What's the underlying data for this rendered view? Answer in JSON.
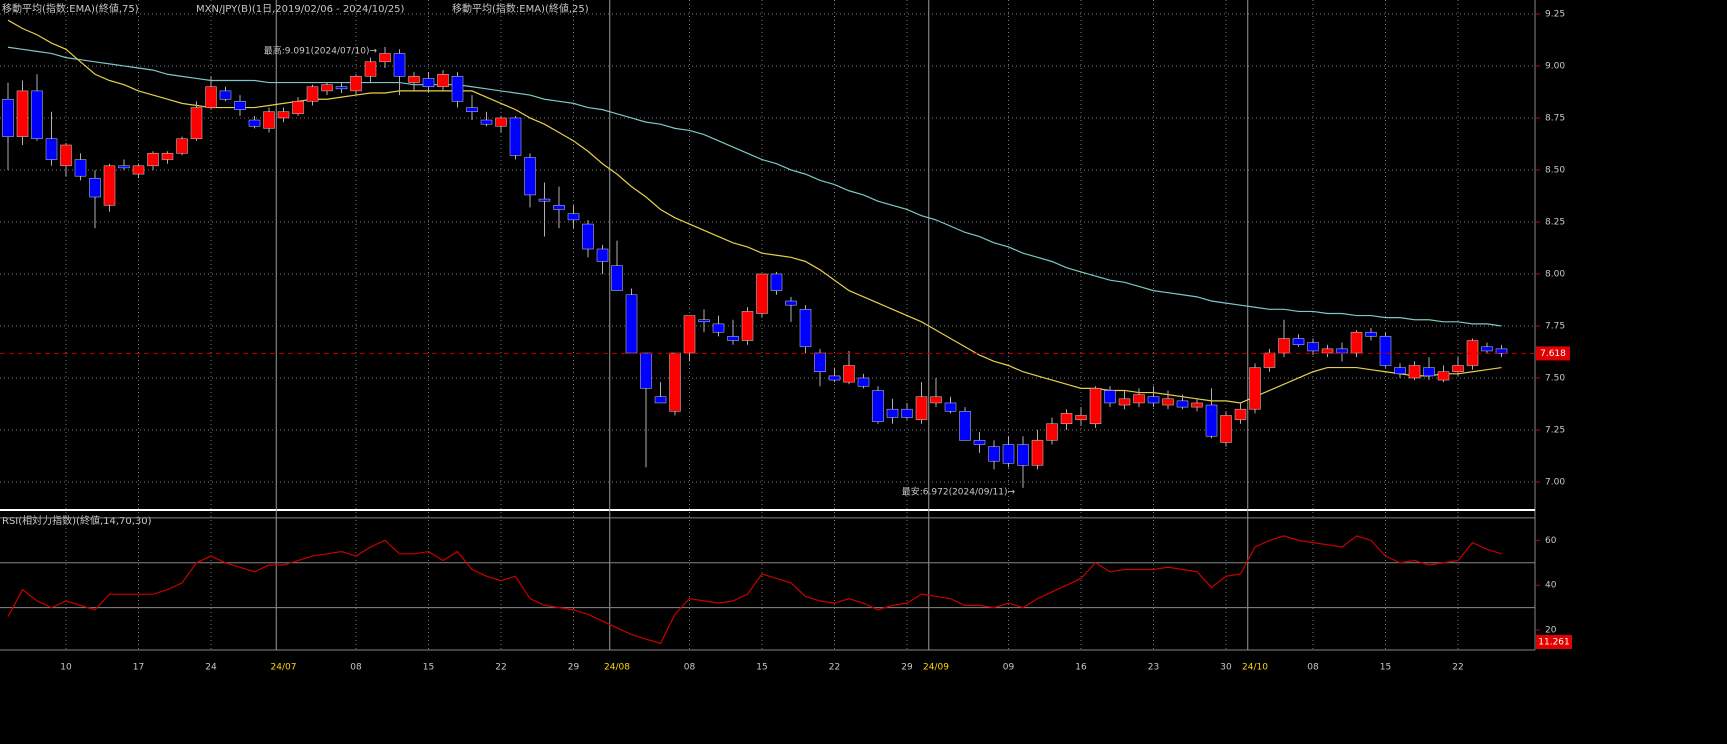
{
  "chart_data": [
    {
      "type": "candlestick",
      "title": "MXN/JPY(B)(1日,2019/02/06 - 2024/10/25)",
      "up_color": "#ff0000",
      "down_color": "#0000ff",
      "wick_color": "#b0b0b0",
      "categories": [
        null,
        null,
        null,
        null,
        "10",
        null,
        null,
        null,
        null,
        "17",
        null,
        null,
        null,
        null,
        "24",
        null,
        null,
        null,
        null,
        "24/07",
        null,
        null,
        null,
        null,
        "08",
        null,
        null,
        null,
        null,
        "15",
        null,
        null,
        null,
        null,
        "22",
        null,
        null,
        null,
        null,
        "29",
        null,
        null,
        "24/08",
        null,
        null,
        null,
        null,
        "08",
        null,
        null,
        null,
        null,
        "15",
        null,
        null,
        null,
        null,
        "22",
        null,
        null,
        null,
        null,
        "29",
        null,
        "24/09",
        null,
        null,
        null,
        null,
        "09",
        null,
        null,
        null,
        null,
        "16",
        null,
        null,
        null,
        null,
        "23",
        null,
        null,
        null,
        null,
        "30",
        null,
        "24/10",
        null,
        null,
        null,
        "08",
        null,
        null,
        null,
        null,
        "15",
        null,
        null,
        null,
        null,
        "22",
        null,
        null,
        null
      ],
      "open": [
        8.84,
        8.66,
        8.88,
        8.65,
        8.52,
        8.55,
        8.46,
        8.33,
        8.52,
        8.48,
        8.52,
        8.55,
        8.58,
        8.65,
        8.8,
        8.88,
        8.83,
        8.74,
        8.7,
        8.75,
        8.77,
        8.83,
        8.88,
        8.9,
        8.88,
        8.95,
        9.02,
        9.06,
        8.92,
        8.94,
        8.9,
        8.95,
        8.8,
        8.74,
        8.71,
        8.75,
        8.56,
        8.36,
        8.33,
        8.29,
        8.24,
        8.12,
        8.04,
        7.9,
        7.62,
        7.41,
        7.34,
        7.62,
        7.78,
        7.76,
        7.7,
        7.68,
        7.81,
        8.0,
        7.87,
        7.83,
        7.62,
        7.51,
        7.48,
        7.5,
        7.44,
        7.35,
        7.35,
        7.3,
        7.38,
        7.38,
        7.34,
        7.2,
        7.17,
        7.18,
        7.18,
        7.08,
        7.2,
        7.28,
        7.3,
        7.28,
        7.44,
        7.37,
        7.38,
        7.41,
        7.37,
        7.39,
        7.36,
        7.37,
        7.19,
        7.3,
        7.35,
        7.55,
        7.62,
        7.69,
        7.67,
        7.62,
        7.64,
        7.62,
        7.72,
        7.7,
        7.55,
        7.5,
        7.55,
        7.49,
        7.53,
        7.56,
        7.65,
        7.64
      ],
      "high": [
        8.92,
        8.93,
        8.96,
        8.78,
        8.63,
        8.58,
        8.5,
        8.53,
        8.55,
        8.53,
        8.59,
        8.59,
        8.66,
        8.83,
        8.95,
        8.9,
        8.86,
        8.76,
        8.8,
        8.8,
        8.85,
        8.91,
        8.92,
        8.92,
        8.96,
        9.04,
        9.091,
        9.08,
        8.97,
        8.97,
        8.98,
        8.97,
        8.86,
        8.78,
        8.76,
        8.76,
        8.58,
        8.44,
        8.42,
        8.33,
        8.26,
        8.14,
        8.16,
        7.93,
        7.62,
        7.48,
        7.62,
        7.8,
        7.83,
        7.8,
        7.78,
        7.84,
        8.0,
        8.01,
        7.89,
        7.85,
        7.64,
        7.55,
        7.63,
        7.52,
        7.46,
        7.4,
        7.38,
        7.48,
        7.5,
        7.41,
        7.36,
        7.24,
        7.2,
        7.22,
        7.22,
        7.25,
        7.31,
        7.35,
        7.36,
        7.46,
        7.46,
        7.44,
        7.45,
        7.46,
        7.44,
        7.42,
        7.4,
        7.45,
        7.34,
        7.38,
        7.57,
        7.64,
        7.78,
        7.71,
        7.69,
        7.66,
        7.67,
        7.73,
        7.74,
        7.72,
        7.57,
        7.58,
        7.6,
        7.56,
        7.6,
        7.69,
        7.67,
        7.66
      ],
      "low": [
        8.5,
        8.62,
        8.64,
        8.52,
        8.47,
        8.45,
        8.22,
        8.3,
        8.5,
        8.46,
        8.5,
        8.53,
        8.57,
        8.64,
        8.79,
        8.83,
        8.76,
        8.7,
        8.68,
        8.73,
        8.76,
        8.81,
        8.86,
        8.87,
        8.86,
        8.92,
        8.99,
        8.86,
        8.88,
        8.87,
        8.88,
        8.8,
        8.74,
        8.71,
        8.68,
        8.55,
        8.32,
        8.18,
        8.22,
        8.22,
        8.08,
        8.0,
        7.92,
        7.62,
        7.07,
        7.38,
        7.32,
        7.58,
        7.72,
        7.7,
        7.66,
        7.66,
        7.79,
        7.9,
        7.77,
        7.62,
        7.46,
        7.48,
        7.47,
        7.45,
        7.28,
        7.28,
        7.3,
        7.28,
        7.36,
        7.33,
        7.2,
        7.14,
        7.06,
        7.07,
        6.972,
        7.06,
        7.18,
        7.25,
        7.27,
        7.26,
        7.36,
        7.35,
        7.36,
        7.36,
        7.35,
        7.35,
        7.34,
        7.21,
        7.17,
        7.28,
        7.33,
        7.53,
        7.6,
        7.65,
        7.61,
        7.6,
        7.58,
        7.6,
        7.68,
        7.55,
        7.5,
        7.49,
        7.49,
        7.48,
        7.51,
        7.54,
        7.62,
        7.6
      ],
      "close": [
        8.66,
        8.88,
        8.65,
        8.55,
        8.62,
        8.47,
        8.37,
        8.52,
        8.51,
        8.52,
        8.58,
        8.58,
        8.65,
        8.8,
        8.9,
        8.84,
        8.79,
        8.71,
        8.78,
        8.78,
        8.83,
        8.9,
        8.91,
        8.89,
        8.95,
        9.02,
        9.06,
        8.95,
        8.95,
        8.9,
        8.96,
        8.83,
        8.78,
        8.72,
        8.75,
        8.57,
        8.38,
        8.35,
        8.31,
        8.26,
        8.12,
        8.06,
        7.92,
        7.62,
        7.45,
        7.38,
        7.62,
        7.8,
        7.77,
        7.72,
        7.68,
        7.82,
        8.0,
        7.92,
        7.85,
        7.65,
        7.53,
        7.49,
        7.56,
        7.46,
        7.29,
        7.31,
        7.31,
        7.41,
        7.41,
        7.34,
        7.2,
        7.18,
        7.1,
        7.09,
        7.08,
        7.2,
        7.28,
        7.33,
        7.32,
        7.45,
        7.38,
        7.4,
        7.42,
        7.38,
        7.4,
        7.36,
        7.38,
        7.22,
        7.32,
        7.35,
        7.55,
        7.62,
        7.69,
        7.66,
        7.63,
        7.64,
        7.62,
        7.72,
        7.7,
        7.56,
        7.52,
        7.56,
        7.51,
        7.53,
        7.56,
        7.68,
        7.63,
        7.618
      ],
      "series": [
        {
          "name": "移動平均(指数:EMA)(終値,75)",
          "color": "#7fc6c6",
          "values": [
            9.09,
            9.08,
            9.07,
            9.06,
            9.04,
            9.03,
            9.02,
            9.01,
            9.0,
            8.99,
            8.98,
            8.96,
            8.95,
            8.94,
            8.93,
            8.93,
            8.93,
            8.93,
            8.92,
            8.92,
            8.92,
            8.92,
            8.92,
            8.92,
            8.92,
            8.92,
            8.92,
            8.92,
            8.91,
            8.91,
            8.91,
            8.91,
            8.9,
            8.89,
            8.88,
            8.87,
            8.86,
            8.84,
            8.83,
            8.82,
            8.8,
            8.79,
            8.77,
            8.75,
            8.73,
            8.72,
            8.7,
            8.69,
            8.67,
            8.64,
            8.61,
            8.58,
            8.55,
            8.53,
            8.5,
            8.48,
            8.45,
            8.43,
            8.4,
            8.38,
            8.35,
            8.33,
            8.31,
            8.28,
            8.26,
            8.23,
            8.2,
            8.18,
            8.15,
            8.13,
            8.1,
            8.08,
            8.06,
            8.03,
            8.01,
            7.99,
            7.97,
            7.96,
            7.94,
            7.92,
            7.91,
            7.9,
            7.89,
            7.87,
            7.86,
            7.85,
            7.84,
            7.83,
            7.83,
            7.82,
            7.82,
            7.81,
            7.81,
            7.8,
            7.8,
            7.79,
            7.79,
            7.78,
            7.78,
            7.77,
            7.77,
            7.76,
            7.76,
            7.75
          ]
        },
        {
          "name": "移動平均(指数:EMA)(終値,25)",
          "color": "#e6cf4a",
          "values": [
            9.22,
            9.18,
            9.15,
            9.11,
            9.08,
            9.02,
            8.96,
            8.93,
            8.91,
            8.88,
            8.86,
            8.84,
            8.82,
            8.81,
            8.8,
            8.8,
            8.8,
            8.8,
            8.81,
            8.82,
            8.83,
            8.84,
            8.84,
            8.85,
            8.86,
            8.87,
            8.87,
            8.88,
            8.88,
            8.88,
            8.88,
            8.88,
            8.88,
            8.85,
            8.82,
            8.79,
            8.75,
            8.72,
            8.68,
            8.64,
            8.59,
            8.53,
            8.48,
            8.42,
            8.37,
            8.31,
            8.27,
            8.24,
            8.21,
            8.18,
            8.15,
            8.13,
            8.1,
            8.09,
            8.08,
            8.06,
            8.02,
            7.97,
            7.92,
            7.89,
            7.86,
            7.83,
            7.8,
            7.77,
            7.73,
            7.69,
            7.65,
            7.61,
            7.58,
            7.56,
            7.53,
            7.51,
            7.49,
            7.47,
            7.45,
            7.45,
            7.44,
            7.44,
            7.43,
            7.43,
            7.42,
            7.41,
            7.4,
            7.39,
            7.39,
            7.38,
            7.41,
            7.44,
            7.47,
            7.5,
            7.53,
            7.55,
            7.55,
            7.55,
            7.54,
            7.53,
            7.52,
            7.51,
            7.51,
            7.52,
            7.52,
            7.53,
            7.54,
            7.55
          ]
        }
      ],
      "annotations": [
        "最高:9.091(2024/07/10)→",
        "最安:6.972(2024/09/11)→"
      ],
      "current_line_color": "#c00000",
      "ylim": [
        6.875,
        9.317
      ],
      "yticks": [
        {
          "value": 7.0,
          "label": "7.00"
        },
        {
          "value": 7.25,
          "label": "7.25"
        },
        {
          "value": 7.5,
          "label": "7.50"
        },
        {
          "value": 7.75,
          "label": "7.75"
        },
        {
          "value": 8.0,
          "label": "8.00"
        },
        {
          "value": 8.25,
          "label": "8.25"
        },
        {
          "value": 8.5,
          "label": "8.50"
        },
        {
          "value": 8.75,
          "label": "8.75"
        },
        {
          "value": 9.0,
          "label": "9.00"
        },
        {
          "value": 9.25,
          "label": "9.25"
        }
      ],
      "grid": true
    },
    {
      "type": "line",
      "title": "RSI(相対力指数)(終値,14,70,30)",
      "series": [
        {
          "name": "RSI",
          "color": "#c80000",
          "values": [
            26,
            38,
            33,
            30,
            33,
            31,
            29,
            36,
            36,
            36,
            36,
            38,
            41,
            50,
            53,
            50,
            48,
            46,
            49,
            49,
            51,
            53,
            54,
            55,
            53,
            57,
            60,
            54,
            54,
            55,
            51,
            55,
            47,
            44,
            42,
            44,
            34,
            31,
            30,
            29,
            27,
            24,
            21,
            18,
            16,
            14,
            27,
            34,
            33,
            32,
            33,
            36,
            45,
            43,
            41,
            35,
            33,
            32,
            34,
            32,
            29,
            31,
            32,
            36,
            35,
            34,
            31,
            31,
            30,
            32,
            30,
            34,
            37,
            40,
            43,
            50,
            46,
            47,
            47,
            47,
            48,
            47,
            46,
            39,
            44,
            45,
            57,
            60,
            62,
            60,
            59,
            58,
            57,
            62,
            60,
            53,
            50,
            51,
            49,
            50,
            51,
            59,
            56,
            54
          ]
        }
      ],
      "reference_lines": [
        30,
        50,
        70
      ],
      "ylim": [
        11.1,
        72.2
      ],
      "yticks": [
        20,
        40,
        60
      ],
      "marker_label": "11.261"
    }
  ]
}
